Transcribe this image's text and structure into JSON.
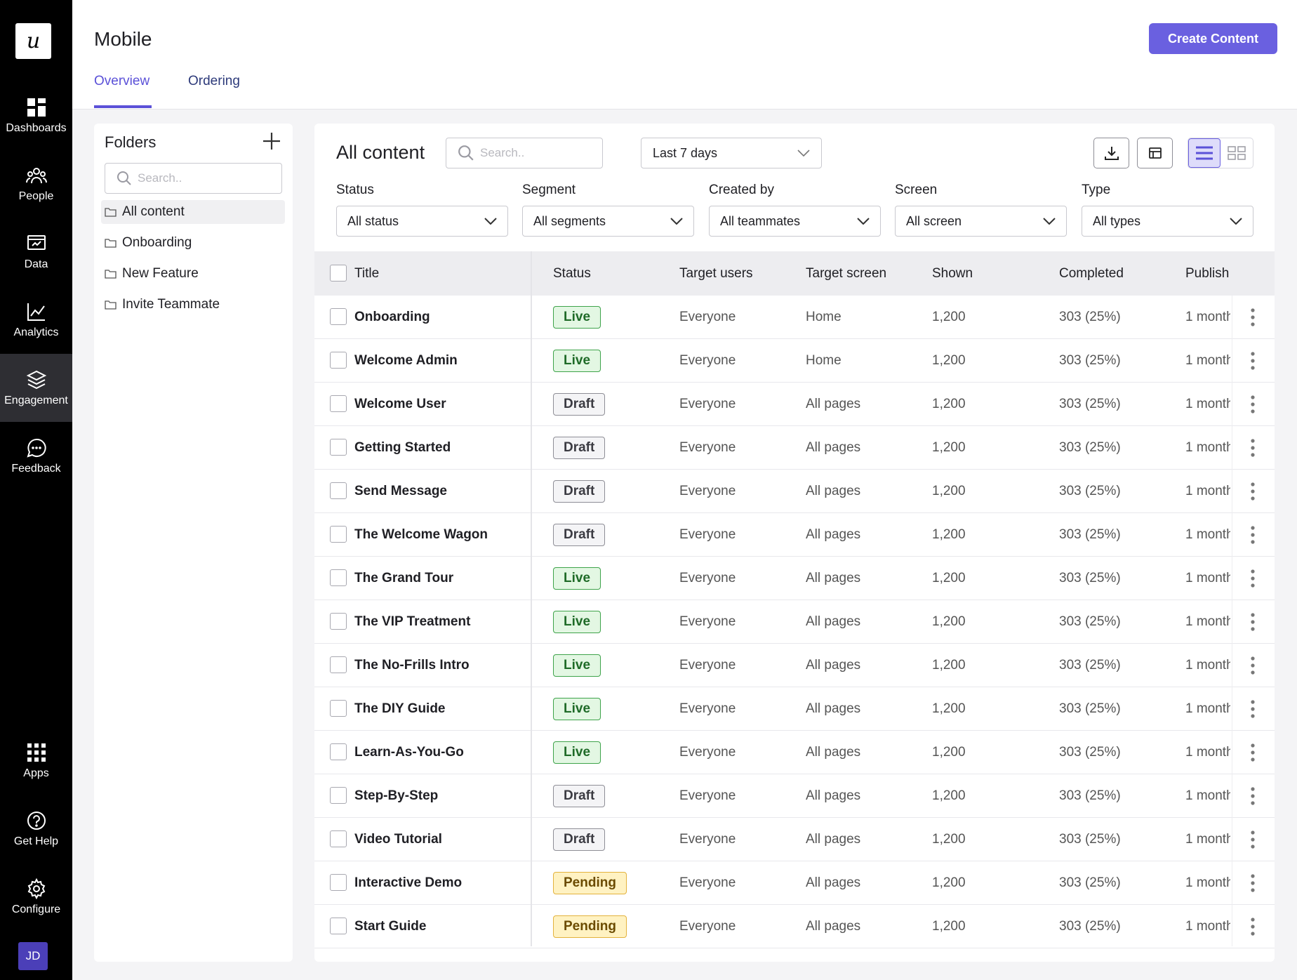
{
  "nav": {
    "logo": "u",
    "items": [
      {
        "label": "Dashboards",
        "icon": "dashboard-icon"
      },
      {
        "label": "People",
        "icon": "people-icon"
      },
      {
        "label": "Data",
        "icon": "data-icon"
      },
      {
        "label": "Analytics",
        "icon": "analytics-icon"
      },
      {
        "label": "Engagement",
        "icon": "layers-icon",
        "active": true
      },
      {
        "label": "Feedback",
        "icon": "chat-icon"
      }
    ],
    "bottom": [
      {
        "label": "Apps",
        "icon": "apps-grid-icon"
      },
      {
        "label": "Get Help",
        "icon": "help-icon"
      },
      {
        "label": "Configure",
        "icon": "gear-icon"
      }
    ],
    "avatar": "JD"
  },
  "header": {
    "title": "Mobile",
    "create_label": "Create Content",
    "tabs": [
      {
        "label": "Overview"
      },
      {
        "label": "Ordering"
      }
    ]
  },
  "folders": {
    "title": "Folders",
    "search_placeholder": "Search..",
    "items": [
      {
        "label": "All content"
      },
      {
        "label": "Onboarding"
      },
      {
        "label": "New Feature"
      },
      {
        "label": "Invite Teammate"
      }
    ]
  },
  "main": {
    "title": "All content",
    "search_placeholder": "Search..",
    "date_range": "Last 7 days",
    "filters": [
      {
        "label": "Status",
        "value": "All status"
      },
      {
        "label": "Segment",
        "value": "All segments"
      },
      {
        "label": "Created by",
        "value": "All teammates"
      },
      {
        "label": "Screen",
        "value": "All screen"
      },
      {
        "label": "Type",
        "value": "All types"
      }
    ]
  },
  "table": {
    "columns": [
      "Title",
      "Status",
      "Target users",
      "Target screen",
      "Shown",
      "Completed",
      "Publish"
    ],
    "rows": [
      {
        "title": "Onboarding",
        "status": "Live",
        "users": "Everyone",
        "screen": "Home",
        "shown": "1,200",
        "completed": "303 (25%)",
        "publish": "1 month"
      },
      {
        "title": "Welcome Admin",
        "status": "Live",
        "users": "Everyone",
        "screen": "Home",
        "shown": "1,200",
        "completed": "303 (25%)",
        "publish": "1 month"
      },
      {
        "title": "Welcome User",
        "status": "Draft",
        "users": "Everyone",
        "screen": "All pages",
        "shown": "1,200",
        "completed": "303 (25%)",
        "publish": "1 month"
      },
      {
        "title": "Getting Started",
        "status": "Draft",
        "users": "Everyone",
        "screen": "All pages",
        "shown": "1,200",
        "completed": "303 (25%)",
        "publish": "1 month"
      },
      {
        "title": "Send Message",
        "status": "Draft",
        "users": "Everyone",
        "screen": "All pages",
        "shown": "1,200",
        "completed": "303 (25%)",
        "publish": "1 month"
      },
      {
        "title": "The Welcome Wagon",
        "status": "Draft",
        "users": "Everyone",
        "screen": "All pages",
        "shown": "1,200",
        "completed": "303 (25%)",
        "publish": "1 month"
      },
      {
        "title": "The Grand Tour",
        "status": "Live",
        "users": "Everyone",
        "screen": "All pages",
        "shown": "1,200",
        "completed": "303 (25%)",
        "publish": "1 month"
      },
      {
        "title": "The VIP Treatment",
        "status": "Live",
        "users": "Everyone",
        "screen": "All pages",
        "shown": "1,200",
        "completed": "303 (25%)",
        "publish": "1 month"
      },
      {
        "title": "The No-Frills Intro",
        "status": "Live",
        "users": "Everyone",
        "screen": "All pages",
        "shown": "1,200",
        "completed": "303 (25%)",
        "publish": "1 month"
      },
      {
        "title": "The DIY Guide",
        "status": "Live",
        "users": "Everyone",
        "screen": "All pages",
        "shown": "1,200",
        "completed": "303 (25%)",
        "publish": "1 month"
      },
      {
        "title": "Learn-As-You-Go",
        "status": "Live",
        "users": "Everyone",
        "screen": "All pages",
        "shown": "1,200",
        "completed": "303 (25%)",
        "publish": "1 month"
      },
      {
        "title": "Step-By-Step",
        "status": "Draft",
        "users": "Everyone",
        "screen": "All pages",
        "shown": "1,200",
        "completed": "303 (25%)",
        "publish": "1 month"
      },
      {
        "title": "Video Tutorial",
        "status": "Draft",
        "users": "Everyone",
        "screen": "All pages",
        "shown": "1,200",
        "completed": "303 (25%)",
        "publish": "1 month"
      },
      {
        "title": "Interactive Demo",
        "status": "Pending",
        "users": "Everyone",
        "screen": "All pages",
        "shown": "1,200",
        "completed": "303 (25%)",
        "publish": "1 month"
      },
      {
        "title": "Start Guide",
        "status": "Pending",
        "users": "Everyone",
        "screen": "All pages",
        "shown": "1,200",
        "completed": "303 (25%)",
        "publish": "1 month"
      }
    ]
  },
  "colors": {
    "accent": "#6a60e0",
    "nav_bg": "#000000",
    "live": "#3ea34a",
    "draft": "#8e8e96",
    "pending": "#e3b23c"
  }
}
